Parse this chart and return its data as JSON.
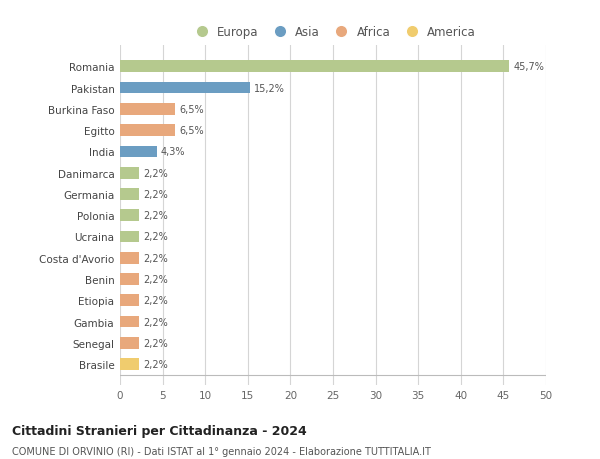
{
  "countries": [
    "Romania",
    "Pakistan",
    "Burkina Faso",
    "Egitto",
    "India",
    "Danimarca",
    "Germania",
    "Polonia",
    "Ucraina",
    "Costa d'Avorio",
    "Benin",
    "Etiopia",
    "Gambia",
    "Senegal",
    "Brasile"
  ],
  "values": [
    45.7,
    15.2,
    6.5,
    6.5,
    4.3,
    2.2,
    2.2,
    2.2,
    2.2,
    2.2,
    2.2,
    2.2,
    2.2,
    2.2,
    2.2
  ],
  "labels": [
    "45,7%",
    "15,2%",
    "6,5%",
    "6,5%",
    "4,3%",
    "2,2%",
    "2,2%",
    "2,2%",
    "2,2%",
    "2,2%",
    "2,2%",
    "2,2%",
    "2,2%",
    "2,2%",
    "2,2%"
  ],
  "colors": [
    "#b5c98e",
    "#6b9dc2",
    "#e8a87c",
    "#e8a87c",
    "#6b9dc2",
    "#b5c98e",
    "#b5c98e",
    "#b5c98e",
    "#b5c98e",
    "#e8a87c",
    "#e8a87c",
    "#e8a87c",
    "#e8a87c",
    "#e8a87c",
    "#f0cc6e"
  ],
  "legend_labels": [
    "Europa",
    "Asia",
    "Africa",
    "America"
  ],
  "legend_colors": [
    "#b5c98e",
    "#6b9dc2",
    "#e8a87c",
    "#f0cc6e"
  ],
  "xlim": [
    0,
    50
  ],
  "xticks": [
    0,
    5,
    10,
    15,
    20,
    25,
    30,
    35,
    40,
    45,
    50
  ],
  "title": "Cittadini Stranieri per Cittadinanza - 2024",
  "subtitle": "COMUNE DI ORVINIO (RI) - Dati ISTAT al 1° gennaio 2024 - Elaborazione TUTTITALIA.IT",
  "bg_color": "#ffffff",
  "grid_color": "#d5d5d5",
  "bar_height": 0.55
}
